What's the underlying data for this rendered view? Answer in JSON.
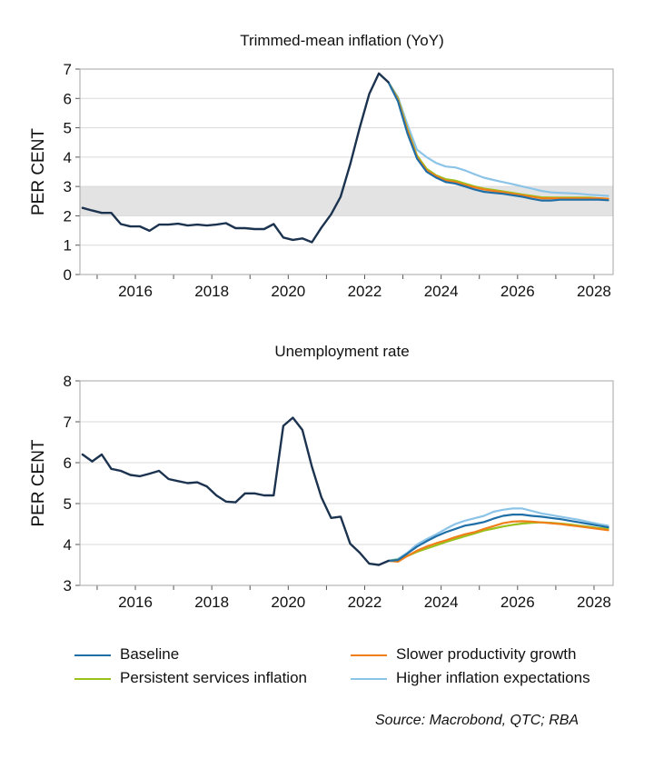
{
  "chart_data": [
    {
      "type": "line",
      "title": "Trimmed-mean inflation (YoY)",
      "ylabel": "PER CENT",
      "xlabel": "",
      "ylim": [
        0,
        7
      ],
      "yticks": [
        0,
        1,
        2,
        3,
        4,
        5,
        6,
        7
      ],
      "xlim": [
        2014.55,
        2028.5
      ],
      "xticks": [
        2016,
        2018,
        2020,
        2022,
        2024,
        2026,
        2028
      ],
      "target_band": [
        2,
        3
      ],
      "grid": true,
      "history": {
        "name": "History",
        "color": "#1c3350",
        "x": [
          2014.62,
          2014.87,
          2015.12,
          2015.37,
          2015.62,
          2015.87,
          2016.12,
          2016.37,
          2016.62,
          2016.87,
          2017.12,
          2017.37,
          2017.62,
          2017.87,
          2018.12,
          2018.37,
          2018.62,
          2018.87,
          2019.12,
          2019.37,
          2019.62,
          2019.87,
          2020.12,
          2020.37,
          2020.62,
          2020.87,
          2021.12,
          2021.37,
          2021.62,
          2021.87,
          2022.12,
          2022.37,
          2022.62
        ],
        "y": [
          2.27,
          2.18,
          2.1,
          2.1,
          1.72,
          1.64,
          1.64,
          1.49,
          1.7,
          1.7,
          1.73,
          1.67,
          1.7,
          1.67,
          1.7,
          1.75,
          1.58,
          1.58,
          1.55,
          1.55,
          1.72,
          1.26,
          1.18,
          1.23,
          1.1,
          1.6,
          2.05,
          2.65,
          3.75,
          5.0,
          6.15,
          6.85,
          6.55
        ]
      },
      "series": [
        {
          "name": "Baseline",
          "color": "#1f6ea6",
          "x": [
            2022.62,
            2022.87,
            2023.12,
            2023.37,
            2023.62,
            2023.87,
            2024.12,
            2024.37,
            2024.62,
            2024.87,
            2025.12,
            2025.37,
            2025.62,
            2025.87,
            2026.12,
            2026.37,
            2026.62,
            2026.87,
            2027.12,
            2027.37,
            2027.62,
            2027.87,
            2028.12,
            2028.37
          ],
          "y": [
            6.55,
            5.9,
            4.8,
            3.95,
            3.5,
            3.3,
            3.15,
            3.1,
            3.0,
            2.9,
            2.82,
            2.78,
            2.75,
            2.7,
            2.65,
            2.58,
            2.52,
            2.52,
            2.55,
            2.55,
            2.55,
            2.55,
            2.55,
            2.53
          ]
        },
        {
          "name": "Slower productivity growth",
          "color": "#f07f1a",
          "x": [
            2022.62,
            2022.87,
            2023.12,
            2023.37,
            2023.62,
            2023.87,
            2024.12,
            2024.37,
            2024.62,
            2024.87,
            2025.12,
            2025.37,
            2025.62,
            2025.87,
            2026.12,
            2026.37,
            2026.62,
            2026.87,
            2027.12,
            2027.37,
            2027.62,
            2027.87,
            2028.12,
            2028.37
          ],
          "y": [
            6.55,
            5.95,
            4.9,
            4.0,
            3.55,
            3.35,
            3.2,
            3.15,
            3.05,
            2.97,
            2.9,
            2.85,
            2.8,
            2.75,
            2.7,
            2.65,
            2.6,
            2.6,
            2.6,
            2.6,
            2.6,
            2.6,
            2.6,
            2.58
          ]
        },
        {
          "name": "Persistent services inflation",
          "color": "#99c21c",
          "x": [
            2022.62,
            2022.87,
            2023.12,
            2023.37,
            2023.62,
            2023.87,
            2024.12,
            2024.37,
            2024.62,
            2024.87,
            2025.12,
            2025.37,
            2025.62,
            2025.87,
            2026.12,
            2026.37,
            2026.62,
            2026.87,
            2027.12,
            2027.37,
            2027.62,
            2027.87,
            2028.12,
            2028.37
          ],
          "y": [
            6.55,
            6.0,
            4.95,
            4.05,
            3.6,
            3.38,
            3.25,
            3.2,
            3.1,
            3.0,
            2.93,
            2.88,
            2.83,
            2.78,
            2.73,
            2.68,
            2.63,
            2.62,
            2.62,
            2.62,
            2.62,
            2.62,
            2.6,
            2.58
          ]
        },
        {
          "name": "Higher inflation expectations",
          "color": "#8cc4e8",
          "x": [
            2022.62,
            2022.87,
            2023.12,
            2023.37,
            2023.62,
            2023.87,
            2024.12,
            2024.37,
            2024.62,
            2024.87,
            2025.12,
            2025.37,
            2025.62,
            2025.87,
            2026.12,
            2026.37,
            2026.62,
            2026.87,
            2027.12,
            2027.37,
            2027.62,
            2027.87,
            2028.12,
            2028.37
          ],
          "y": [
            6.55,
            6.05,
            5.1,
            4.25,
            4.0,
            3.8,
            3.68,
            3.65,
            3.55,
            3.42,
            3.3,
            3.22,
            3.15,
            3.08,
            3.0,
            2.93,
            2.85,
            2.8,
            2.78,
            2.77,
            2.75,
            2.72,
            2.7,
            2.68
          ]
        }
      ]
    },
    {
      "type": "line",
      "title": "Unemployment rate",
      "ylabel": "PER CENT",
      "xlabel": "",
      "ylim": [
        3,
        8
      ],
      "yticks": [
        3,
        4,
        5,
        6,
        7,
        8
      ],
      "xlim": [
        2014.55,
        2028.5
      ],
      "xticks": [
        2016,
        2018,
        2020,
        2022,
        2024,
        2026,
        2028
      ],
      "grid": true,
      "history": {
        "name": "History",
        "color": "#1c3350",
        "x": [
          2014.62,
          2014.87,
          2015.12,
          2015.37,
          2015.62,
          2015.87,
          2016.12,
          2016.37,
          2016.62,
          2016.87,
          2017.12,
          2017.37,
          2017.62,
          2017.87,
          2018.12,
          2018.37,
          2018.62,
          2018.87,
          2019.12,
          2019.37,
          2019.62,
          2019.87,
          2020.12,
          2020.37,
          2020.62,
          2020.87,
          2021.12,
          2021.37,
          2021.62,
          2021.87,
          2022.12,
          2022.37,
          2022.62
        ],
        "y": [
          6.2,
          6.03,
          6.2,
          5.85,
          5.8,
          5.7,
          5.67,
          5.73,
          5.8,
          5.6,
          5.55,
          5.5,
          5.52,
          5.42,
          5.2,
          5.05,
          5.03,
          5.25,
          5.25,
          5.2,
          5.2,
          6.9,
          7.1,
          6.8,
          5.9,
          5.15,
          4.65,
          4.68,
          4.02,
          3.8,
          3.53,
          3.5,
          3.6
        ]
      },
      "series": [
        {
          "name": "Baseline",
          "color": "#1f6ea6",
          "x": [
            2022.62,
            2022.87,
            2023.12,
            2023.37,
            2023.62,
            2023.87,
            2024.12,
            2024.37,
            2024.62,
            2024.87,
            2025.12,
            2025.37,
            2025.62,
            2025.87,
            2026.12,
            2026.37,
            2026.62,
            2026.87,
            2027.12,
            2027.37,
            2027.62,
            2027.87,
            2028.12,
            2028.37
          ],
          "y": [
            3.6,
            3.62,
            3.78,
            3.95,
            4.08,
            4.2,
            4.3,
            4.38,
            4.46,
            4.5,
            4.55,
            4.63,
            4.7,
            4.73,
            4.73,
            4.7,
            4.68,
            4.65,
            4.62,
            4.58,
            4.54,
            4.5,
            4.46,
            4.42
          ]
        },
        {
          "name": "Slower productivity growth",
          "color": "#f07f1a",
          "x": [
            2022.62,
            2022.87,
            2023.12,
            2023.37,
            2023.62,
            2023.87,
            2024.12,
            2024.37,
            2024.62,
            2024.87,
            2025.12,
            2025.37,
            2025.62,
            2025.87,
            2026.12,
            2026.37,
            2026.62,
            2026.87,
            2027.12,
            2027.37,
            2027.62,
            2027.87,
            2028.12,
            2028.37
          ],
          "y": [
            3.6,
            3.58,
            3.72,
            3.85,
            3.95,
            4.03,
            4.1,
            4.18,
            4.25,
            4.3,
            4.38,
            4.45,
            4.52,
            4.56,
            4.57,
            4.56,
            4.54,
            4.52,
            4.5,
            4.47,
            4.44,
            4.41,
            4.38,
            4.35
          ]
        },
        {
          "name": "Persistent services inflation",
          "color": "#99c21c",
          "x": [
            2022.62,
            2022.87,
            2023.12,
            2023.37,
            2023.62,
            2023.87,
            2024.12,
            2024.37,
            2024.62,
            2024.87,
            2025.12,
            2025.37,
            2025.62,
            2025.87,
            2026.12,
            2026.37,
            2026.62,
            2026.87,
            2027.12,
            2027.37,
            2027.62,
            2027.87,
            2028.12,
            2028.37
          ],
          "y": [
            3.6,
            3.63,
            3.72,
            3.82,
            3.9,
            3.98,
            4.06,
            4.13,
            4.2,
            4.27,
            4.34,
            4.39,
            4.44,
            4.48,
            4.51,
            4.53,
            4.54,
            4.53,
            4.51,
            4.49,
            4.46,
            4.43,
            4.4,
            4.38
          ]
        },
        {
          "name": "Higher inflation expectations",
          "color": "#8cc4e8",
          "x": [
            2022.62,
            2022.87,
            2023.12,
            2023.37,
            2023.62,
            2023.87,
            2024.12,
            2024.37,
            2024.62,
            2024.87,
            2025.12,
            2025.37,
            2025.62,
            2025.87,
            2026.12,
            2026.37,
            2026.62,
            2026.87,
            2027.12,
            2027.37,
            2027.62,
            2027.87,
            2028.12,
            2028.37
          ],
          "y": [
            3.6,
            3.65,
            3.8,
            4.0,
            4.13,
            4.25,
            4.38,
            4.5,
            4.58,
            4.64,
            4.7,
            4.8,
            4.85,
            4.88,
            4.88,
            4.82,
            4.76,
            4.72,
            4.68,
            4.64,
            4.6,
            4.55,
            4.5,
            4.46
          ]
        }
      ]
    }
  ],
  "legend": {
    "items": [
      {
        "label": "Baseline",
        "color": "#1f6ea6"
      },
      {
        "label": "Slower productivity growth",
        "color": "#f07f1a"
      },
      {
        "label": "Persistent services inflation",
        "color": "#99c21c"
      },
      {
        "label": "Higher inflation expectations",
        "color": "#8cc4e8"
      }
    ]
  },
  "source": "Source: Macrobond, QTC; RBA"
}
